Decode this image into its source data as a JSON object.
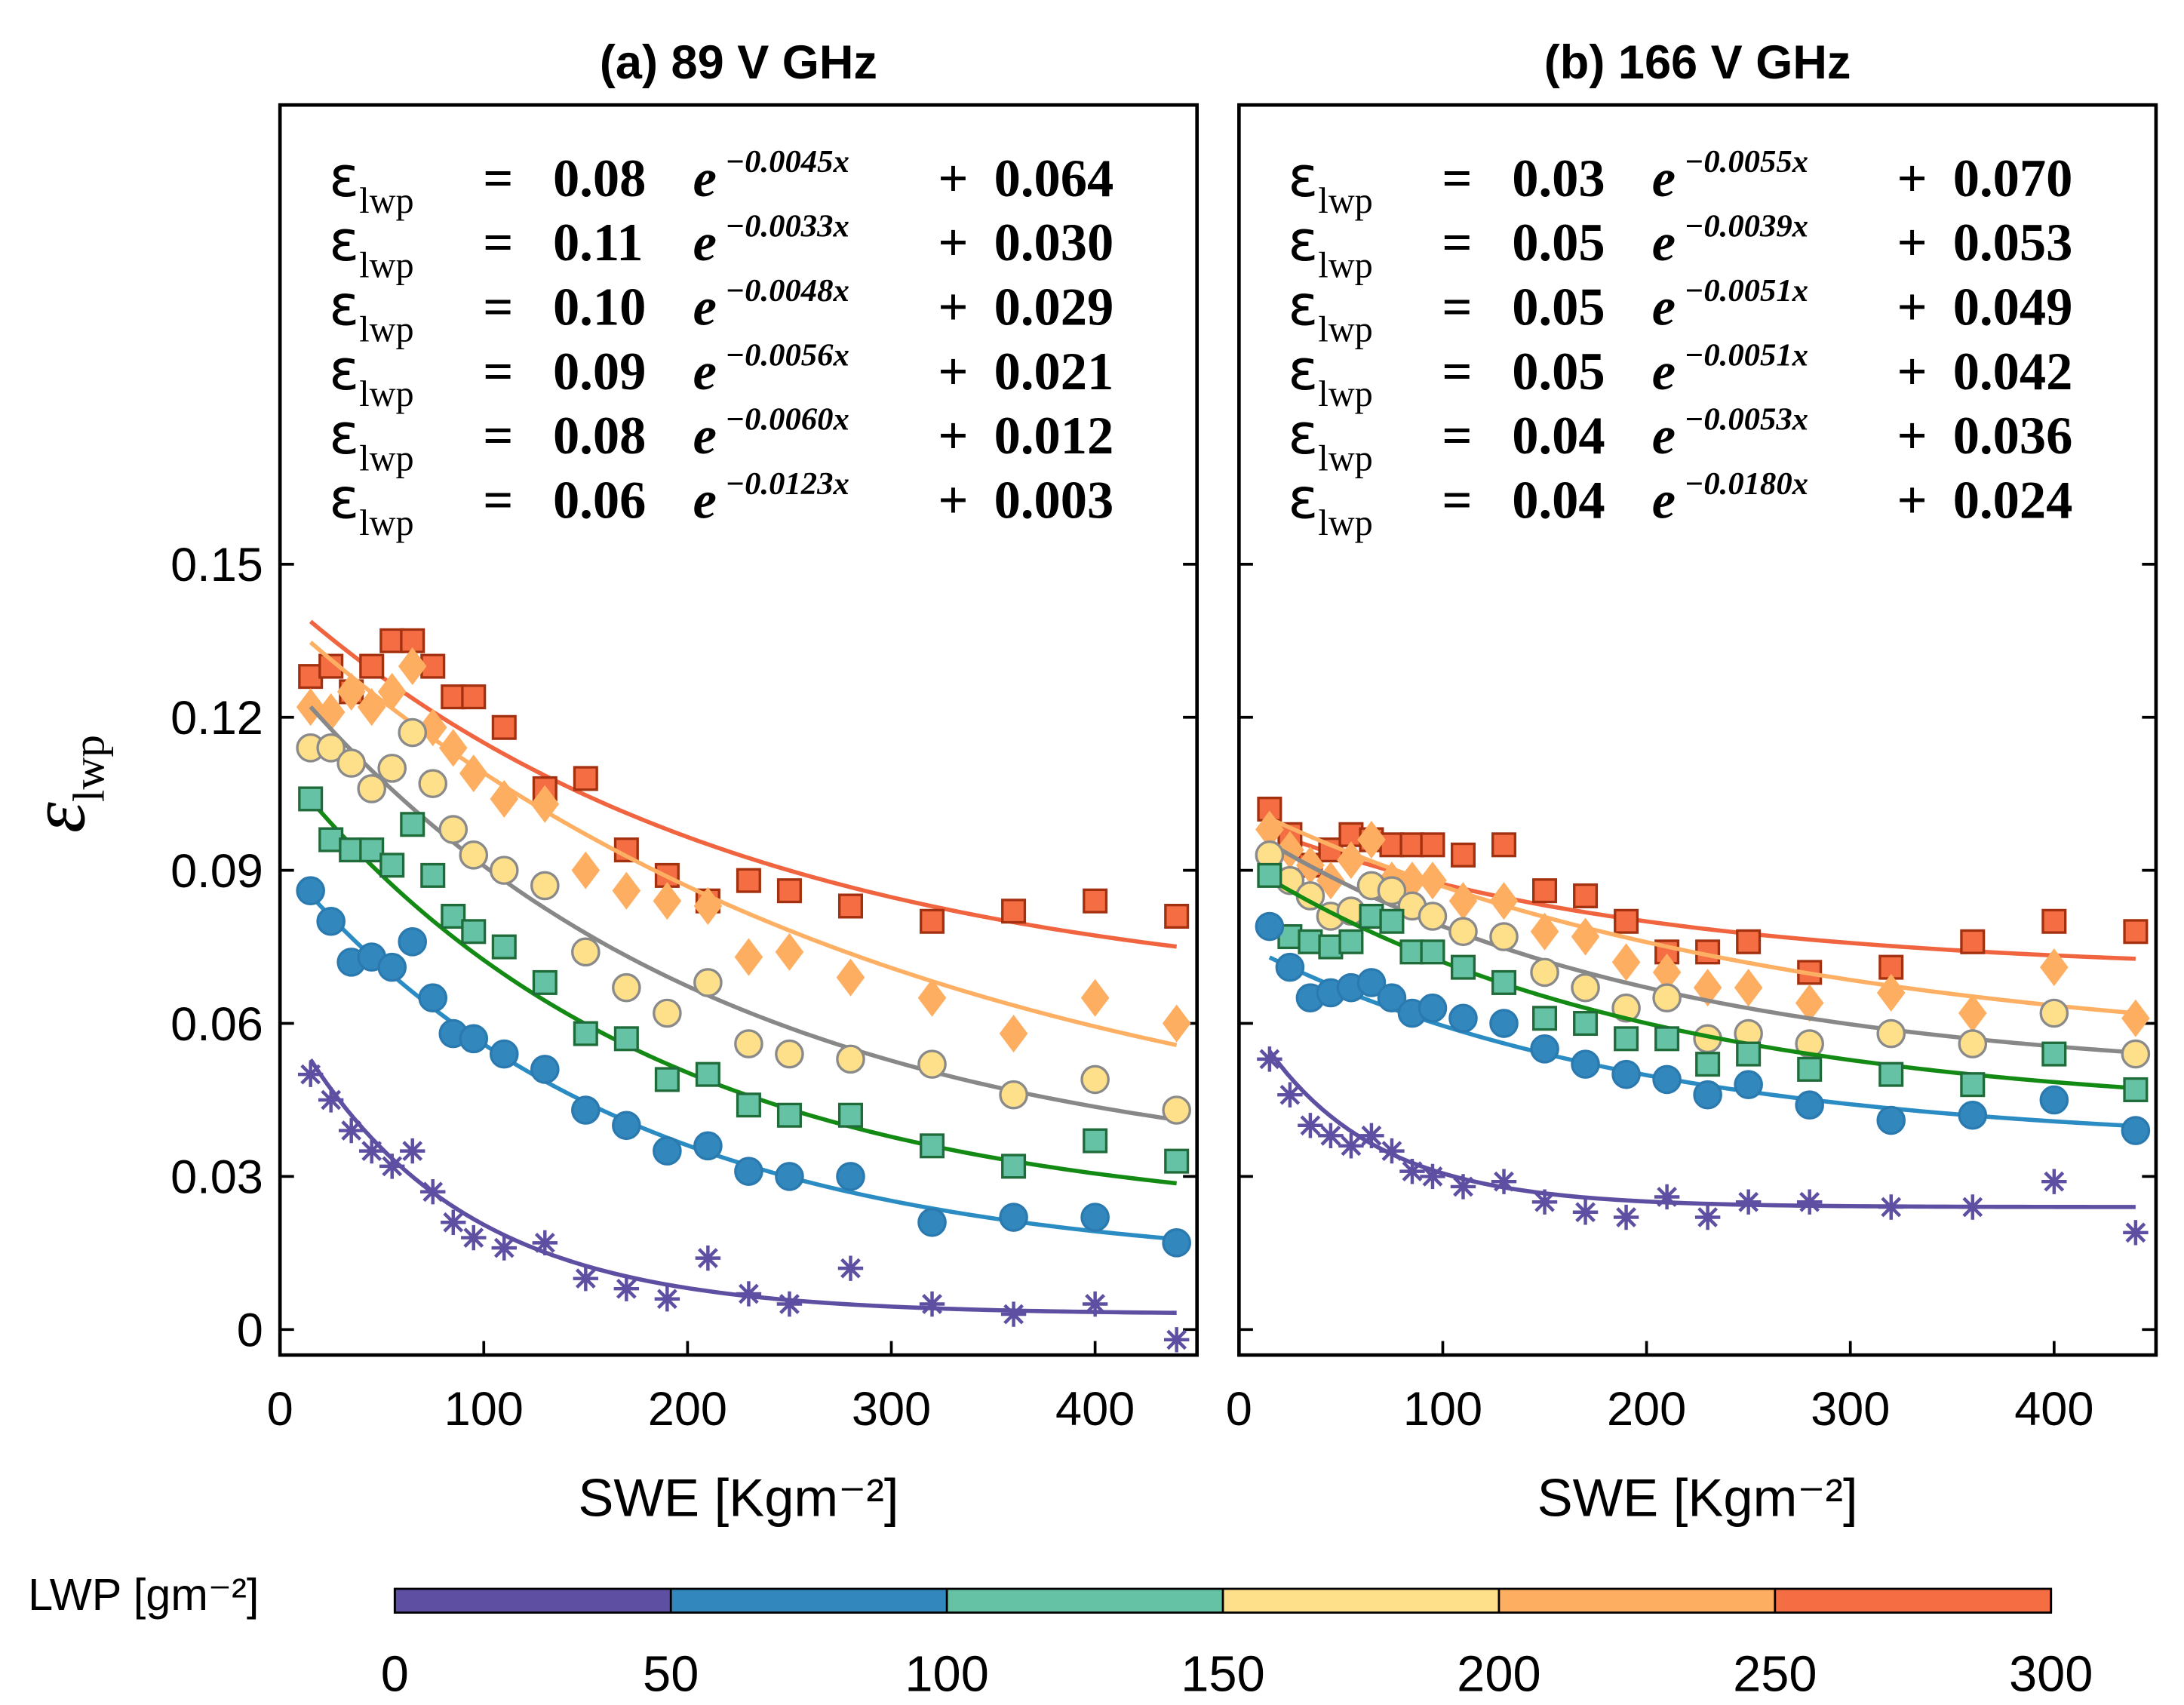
{
  "colorbar": {
    "label": "LWP [gm⁻²]",
    "lim": [
      0,
      300
    ],
    "ticks": [
      0,
      50,
      100,
      150,
      200,
      250,
      300
    ],
    "colors": [
      "#5e4fa2",
      "#3288bd",
      "#66c2a5",
      "#fee08b",
      "#fdae61",
      "#f46d43"
    ]
  },
  "chart_data": [
    {
      "type": "scatter",
      "title": "(a) 89 V GHz",
      "xlabel": "SWE [Kgm⁻²]",
      "ylabel": {
        "symbol": "ε",
        "subscript": "lwp"
      },
      "xlim": [
        0,
        450
      ],
      "ylim": [
        -0.005,
        0.24
      ],
      "xticks": [
        0,
        100,
        200,
        300,
        400
      ],
      "yticks": [
        0,
        0.03,
        0.06,
        0.09,
        0.12,
        0.15
      ],
      "ytick_labels": true,
      "equation": {
        "lhs": "ε",
        "lhs_sub": "lwp",
        "eq": "=",
        "base": "e",
        "plus": "+"
      },
      "x": [
        15,
        25,
        35,
        45,
        55,
        65,
        75,
        85,
        95,
        110,
        130,
        150,
        170,
        190,
        210,
        230,
        250,
        280,
        320,
        360,
        400,
        440
      ],
      "series": [
        {
          "marker": "square",
          "color": "#f46d43",
          "edge_color": "#a3300f",
          "line_color": "#f0643f",
          "text_color": "#ee6a47",
          "values": [
            0.128,
            0.13,
            0.125,
            0.13,
            0.135,
            0.135,
            0.13,
            0.124,
            0.124,
            0.118,
            0.106,
            0.108,
            0.094,
            0.089,
            0.084,
            0.088,
            0.086,
            0.083,
            0.08,
            0.082,
            0.084,
            0.081
          ],
          "fit": {
            "a": 0.08,
            "b": {
              "value": -0.0045,
              "label": "−0.0045x"
            },
            "c": 0.064
          }
        },
        {
          "marker": "diamond",
          "color": "#fdae61",
          "edge_color": "#fdae61",
          "line_color": "#fdb063",
          "text_color": "#d98010",
          "values": [
            0.122,
            0.121,
            0.125,
            0.122,
            0.125,
            0.13,
            0.118,
            0.114,
            0.109,
            0.104,
            0.103,
            0.09,
            0.086,
            0.084,
            0.083,
            0.073,
            0.074,
            0.069,
            0.065,
            0.058,
            0.065,
            0.06
          ],
          "fit": {
            "a": 0.11,
            "b": {
              "value": -0.0033,
              "label": "−0.0033x"
            },
            "c": {
              "value": 0.03,
              "label": "0.030"
            }
          }
        },
        {
          "marker": "circle",
          "color": "#fee08b",
          "edge_color": "#8a8a8a",
          "line_color": "#888888",
          "text_color": "#8a8a8a",
          "values": [
            0.114,
            0.114,
            0.111,
            0.106,
            0.11,
            0.117,
            0.107,
            0.098,
            0.093,
            0.09,
            0.087,
            0.074,
            0.067,
            0.062,
            0.068,
            0.056,
            0.054,
            0.053,
            0.052,
            0.046,
            0.049,
            0.043
          ],
          "fit": {
            "a": {
              "value": 0.1,
              "label": "0.10"
            },
            "b": {
              "value": -0.0048,
              "label": "−0.0048x"
            },
            "c": 0.029
          }
        },
        {
          "marker": "square",
          "color": "#66c2a5",
          "edge_color": "#1f6b3a",
          "line_color": "#138a13",
          "text_color": "#1f6b3a",
          "values": [
            0.104,
            0.096,
            0.094,
            0.094,
            0.091,
            0.099,
            0.089,
            0.081,
            0.078,
            0.075,
            0.068,
            0.058,
            0.057,
            0.049,
            0.05,
            0.044,
            0.042,
            0.042,
            0.036,
            0.032,
            0.037,
            0.033
          ],
          "fit": {
            "a": 0.09,
            "b": {
              "value": -0.0056,
              "label": "−0.0056x"
            },
            "c": 0.021
          }
        },
        {
          "marker": "circle",
          "color": "#3288bd",
          "edge_color": "#2a7ab0",
          "line_color": "#2b8cc4",
          "text_color": "#2b8cc4",
          "values": [
            0.086,
            0.08,
            0.072,
            0.073,
            0.071,
            0.076,
            0.065,
            0.058,
            0.057,
            0.054,
            0.051,
            0.043,
            0.04,
            0.035,
            0.036,
            0.031,
            0.03,
            0.03,
            0.021,
            0.022,
            0.022,
            0.017
          ],
          "fit": {
            "a": 0.08,
            "b": {
              "value": -0.006,
              "label": "−0.0060x"
            },
            "c": 0.012
          }
        },
        {
          "marker": "star",
          "color": "#5e4fa2",
          "edge_color": "#5e4fa2",
          "line_color": "#5e4fa2",
          "text_color": "#5e4fa2",
          "values": [
            0.05,
            0.045,
            0.039,
            0.035,
            0.032,
            0.035,
            0.027,
            0.021,
            0.018,
            0.016,
            0.017,
            0.01,
            0.008,
            0.006,
            0.014,
            0.007,
            0.005,
            0.012,
            0.005,
            0.003,
            0.005,
            -0.002
          ],
          "fit": {
            "a": 0.06,
            "b": {
              "value": -0.0123,
              "label": "−0.0123x"
            },
            "c": 0.003
          }
        }
      ]
    },
    {
      "type": "scatter",
      "title": "(b) 166 V GHz",
      "xlabel": "SWE [Kgm⁻²]",
      "xlim": [
        0,
        450
      ],
      "ylim": [
        -0.005,
        0.24
      ],
      "xticks": [
        0,
        100,
        200,
        300,
        400
      ],
      "yticks": [
        0,
        0.03,
        0.06,
        0.09,
        0.12,
        0.15
      ],
      "ytick_labels": false,
      "equation": {
        "lhs": "ε",
        "lhs_sub": "lwp",
        "eq": "=",
        "base": "e",
        "plus": "+"
      },
      "x": [
        15,
        25,
        35,
        45,
        55,
        65,
        75,
        85,
        95,
        110,
        130,
        150,
        170,
        190,
        210,
        230,
        250,
        280,
        320,
        360,
        400,
        440
      ],
      "series": [
        {
          "marker": "square",
          "color": "#f46d43",
          "edge_color": "#a3300f",
          "line_color": "#f0643f",
          "text_color": "#ee6a47",
          "values": [
            0.102,
            0.097,
            0.091,
            0.094,
            0.097,
            0.096,
            0.095,
            0.095,
            0.095,
            0.093,
            0.095,
            0.086,
            0.085,
            0.08,
            0.074,
            0.074,
            0.076,
            0.07,
            0.071,
            0.076,
            0.08,
            0.078
          ],
          "fit": {
            "a": 0.03,
            "b": {
              "value": -0.0055,
              "label": "−0.0055x"
            },
            "c": {
              "value": 0.07,
              "label": "0.070"
            }
          }
        },
        {
          "marker": "diamond",
          "color": "#fdae61",
          "edge_color": "#fdae61",
          "line_color": "#fdb063",
          "text_color": "#d98010",
          "values": [
            0.098,
            0.094,
            0.091,
            0.088,
            0.092,
            0.096,
            0.088,
            0.088,
            0.088,
            0.084,
            0.084,
            0.078,
            0.077,
            0.072,
            0.07,
            0.067,
            0.067,
            0.064,
            0.066,
            0.062,
            0.071,
            0.061
          ],
          "fit": {
            "a": 0.05,
            "b": {
              "value": -0.0039,
              "label": "−0.0039x"
            },
            "c": 0.053
          }
        },
        {
          "marker": "circle",
          "color": "#fee08b",
          "edge_color": "#8a8a8a",
          "line_color": "#888888",
          "text_color": "#8a8a8a",
          "values": [
            0.093,
            0.088,
            0.085,
            0.081,
            0.082,
            0.087,
            0.086,
            0.083,
            0.081,
            0.078,
            0.077,
            0.07,
            0.067,
            0.063,
            0.065,
            0.057,
            0.058,
            0.056,
            0.058,
            0.056,
            0.062,
            0.054
          ],
          "fit": {
            "a": 0.05,
            "b": {
              "value": -0.0051,
              "label": "−0.0051x"
            },
            "c": 0.049
          }
        },
        {
          "marker": "square",
          "color": "#66c2a5",
          "edge_color": "#1f6b3a",
          "line_color": "#138a13",
          "text_color": "#1f6b3a",
          "values": [
            0.089,
            0.077,
            0.076,
            0.075,
            0.076,
            0.081,
            0.08,
            0.074,
            0.074,
            0.071,
            0.068,
            0.061,
            0.06,
            0.057,
            0.057,
            0.052,
            0.054,
            0.051,
            0.05,
            0.048,
            0.054,
            0.047
          ],
          "fit": {
            "a": 0.05,
            "b": {
              "value": -0.0051,
              "label": "−0.0051x"
            },
            "c": 0.042
          }
        },
        {
          "marker": "circle",
          "color": "#3288bd",
          "edge_color": "#2a7ab0",
          "line_color": "#2b8cc4",
          "text_color": "#2b8cc4",
          "values": [
            0.079,
            0.071,
            0.065,
            0.066,
            0.067,
            0.068,
            0.065,
            0.062,
            0.063,
            0.061,
            0.06,
            0.055,
            0.052,
            0.05,
            0.049,
            0.046,
            0.048,
            0.044,
            0.041,
            0.042,
            0.045,
            0.039
          ],
          "fit": {
            "a": 0.04,
            "b": {
              "value": -0.0053,
              "label": "−0.0053x"
            },
            "c": 0.036
          }
        },
        {
          "marker": "star",
          "color": "#5e4fa2",
          "edge_color": "#5e4fa2",
          "line_color": "#5e4fa2",
          "text_color": "#5e4fa2",
          "values": [
            0.053,
            0.046,
            0.04,
            0.038,
            0.036,
            0.038,
            0.035,
            0.031,
            0.03,
            0.028,
            0.029,
            0.025,
            0.023,
            0.022,
            0.026,
            0.022,
            0.025,
            0.025,
            0.024,
            0.024,
            0.029,
            0.019
          ],
          "fit": {
            "a": 0.04,
            "b": {
              "value": -0.018,
              "label": "−0.0180x"
            },
            "c": 0.024
          }
        }
      ]
    }
  ]
}
